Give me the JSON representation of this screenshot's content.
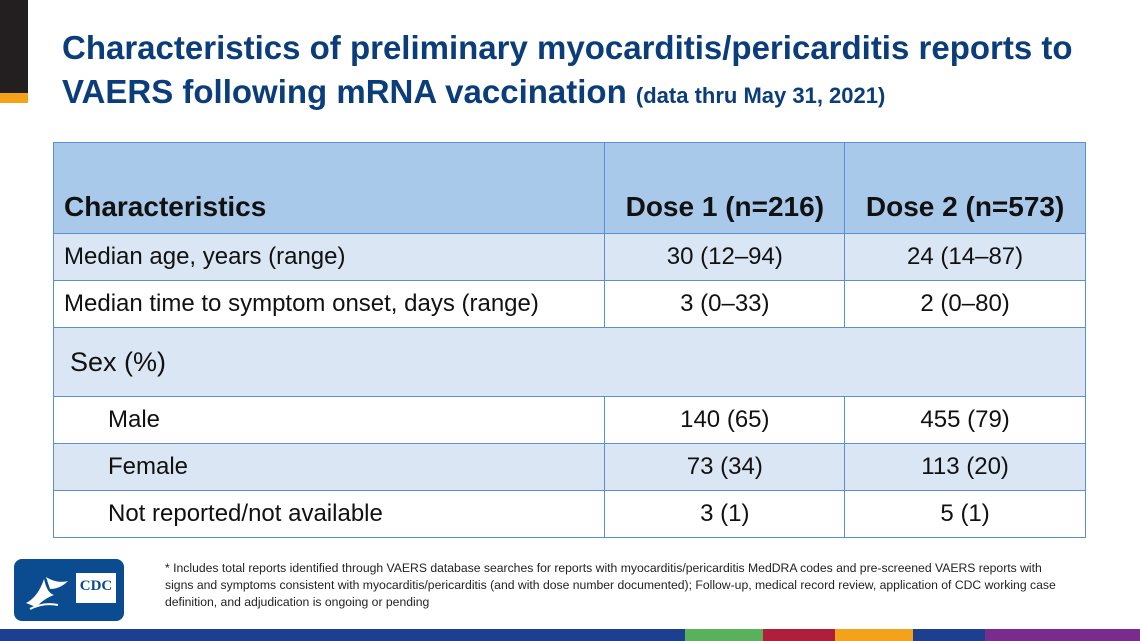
{
  "title": {
    "main": "Characteristics of preliminary myocarditis/pericarditis reports to VAERS following mRNA vaccination",
    "subtitle": "(data thru May 31, 2021)"
  },
  "table": {
    "headers": [
      "Characteristics",
      "Dose 1 (n=216)",
      "Dose 2 (n=573)"
    ],
    "rows": [
      {
        "label": "Median age, years (range)",
        "dose1": "30 (12–94)",
        "dose2": "24 (14–87)"
      },
      {
        "label": "Median time to symptom onset, days (range)",
        "dose1": "3 (0–33)",
        "dose2": "2 (0–80)"
      }
    ],
    "section": "Sex (%)",
    "sex_rows": [
      {
        "label": "Male",
        "dose1": "140 (65)",
        "dose2": "455 (79)"
      },
      {
        "label": "Female",
        "dose1": "73 (34)",
        "dose2": "113 (20)"
      },
      {
        "label": "Not reported/not available",
        "dose1": "3 (1)",
        "dose2": "5 (1)"
      }
    ]
  },
  "footnote": "* Includes total reports identified through VAERS database searches for reports with myocarditis/pericarditis MedDRA codes and pre-screened VAERS reports with signs and symptoms consistent with myocarditis/pericarditis (and with dose number documented); Follow-up, medical record review, application of CDC working case definition, and adjudication is ongoing or pending",
  "logo": {
    "text": "CDC"
  },
  "colors": {
    "title": "#0a3d7a",
    "header_fill": "#a9c9ea",
    "row_fill": "#dbe6f5",
    "border": "#5b8fd1",
    "accent": "#f5a21b"
  },
  "bottom_bar_colors": [
    "#1d3f8f",
    "#1d3f8f",
    "#5bb05a",
    "#b01e3c",
    "#f5a21b",
    "#1d3f8f",
    "#7a2c8c"
  ]
}
